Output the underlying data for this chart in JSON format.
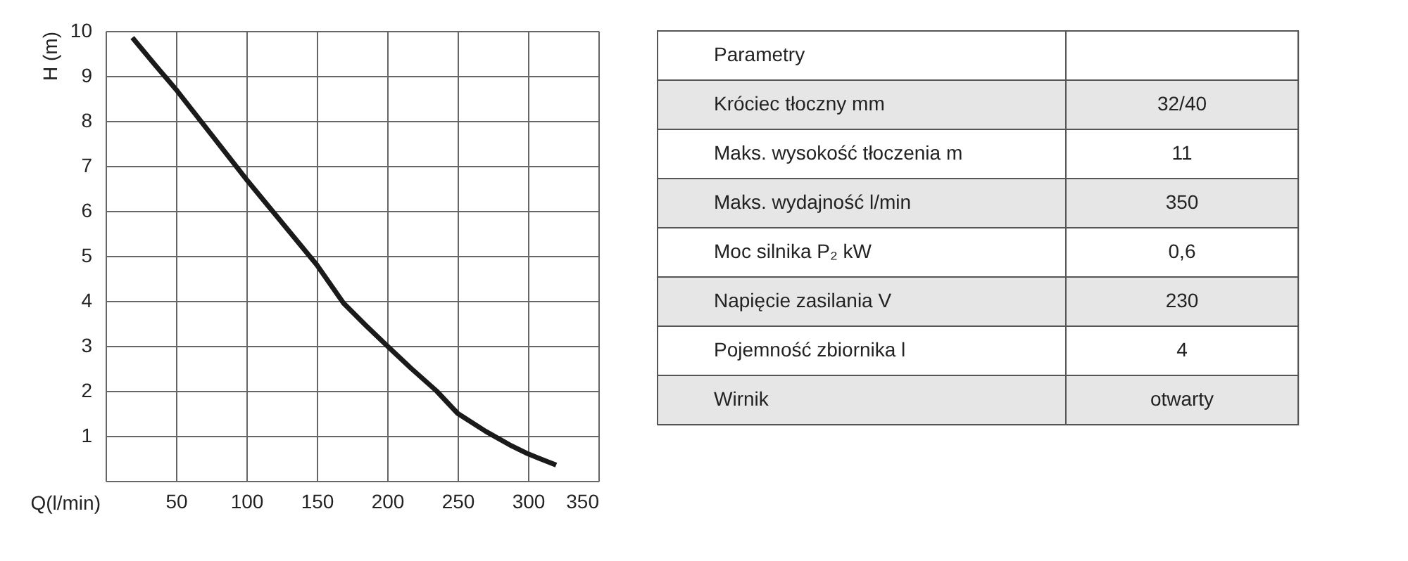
{
  "chart_data": [
    {
      "type": "line",
      "xlabel": "Q(l/min)",
      "ylabel": "H (m)",
      "x": [
        19,
        35,
        50,
        75,
        100,
        125,
        150,
        169,
        185,
        200,
        217,
        235,
        250,
        270,
        287,
        300,
        320
      ],
      "series": [
        {
          "color": "#1a1a1a",
          "values": [
            9.85,
            9.25,
            8.7,
            7.7,
            6.7,
            5.75,
            4.8,
            3.95,
            3.45,
            3.0,
            2.5,
            2.0,
            1.5,
            1.1,
            0.8,
            0.6,
            0.35
          ]
        }
      ],
      "xlim": [
        0,
        350
      ],
      "xticks": [
        {
          "value": 0,
          "label": null
        },
        50,
        100,
        150,
        200,
        250,
        300,
        350
      ],
      "ylim": [
        0,
        10
      ],
      "yticks": [
        {
          "value": 0,
          "label": null
        },
        1,
        2,
        3,
        4,
        5,
        6,
        7,
        8,
        9,
        10
      ],
      "grid": true,
      "line_style": "solid",
      "marker": "none"
    },
    {
      "type": "other",
      "annotations": [
        "Parametry",
        "Króciec tłoczny mm",
        "32/40",
        "Maks. wysokość tłoczenia  m",
        "11",
        "Maks. wydajność  l/min",
        "350",
        "Moc silnika P₂ kW",
        "0,6",
        "Napięcie zasilania V",
        "230",
        "Pojemność zbiornika l",
        "4",
        "Wirnik",
        "otwarty"
      ]
    }
  ]
}
